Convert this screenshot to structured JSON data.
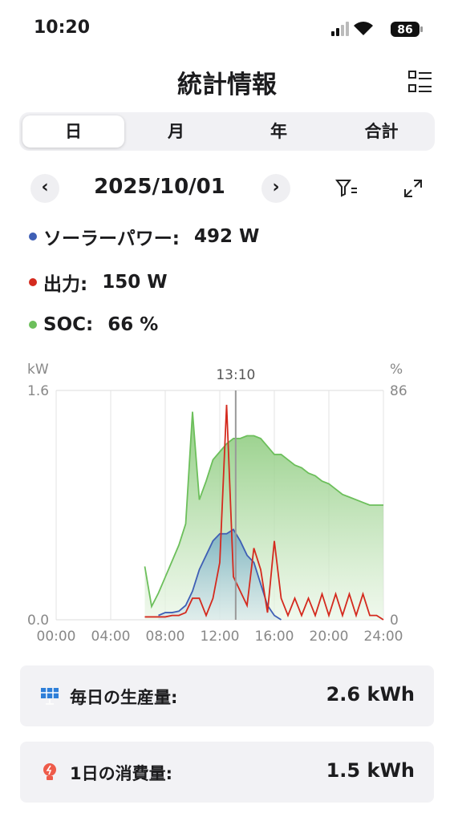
{
  "status_bar": {
    "time": "10:20",
    "battery": "86"
  },
  "header": {
    "title": "統計情報"
  },
  "tabs": {
    "items": [
      "日",
      "月",
      "年",
      "合計"
    ],
    "selected": 0
  },
  "date_nav": {
    "date": "2025/10/01"
  },
  "chart_data": {
    "type": "line",
    "y_label": "kW",
    "y2_label": "%",
    "x": [
      6.5,
      7,
      7.5,
      8,
      8.5,
      9,
      9.5,
      10,
      10.5,
      11,
      11.5,
      12,
      12.5,
      13,
      13.5,
      14,
      14.5,
      15,
      15.5,
      16,
      16.5,
      17,
      17.5,
      18,
      18.5,
      19,
      19.5,
      20,
      20.5,
      21,
      21.5,
      22,
      22.5,
      23,
      23.5,
      24
    ],
    "xlim": [
      0,
      24
    ],
    "xticks": [
      {
        "value": 0,
        "label": "00:00"
      },
      {
        "value": 4,
        "label": "04:00"
      },
      {
        "value": 8,
        "label": "08:00"
      },
      {
        "value": 12,
        "label": "12:00"
      },
      {
        "value": 16,
        "label": "16:00"
      },
      {
        "value": 20,
        "label": "20:00"
      },
      {
        "value": 24,
        "label": "24:00"
      }
    ],
    "ylim": [
      0,
      1.6
    ],
    "yticks": [
      {
        "value": 0,
        "label": "0.0"
      },
      1.6
    ],
    "y2lim": [
      0,
      86
    ],
    "y2ticks": [
      0,
      86
    ],
    "grid": true,
    "cursor": {
      "x": 13.1667,
      "label": "13:10"
    },
    "series": [
      {
        "name": "ソーラーパワー:",
        "color": "#3f5fb5",
        "readout": "492 W",
        "fill": true,
        "values": [
          null,
          null,
          0.03,
          0.05,
          0.05,
          0.06,
          0.1,
          0.2,
          0.35,
          0.45,
          0.55,
          0.6,
          0.6,
          0.63,
          0.55,
          0.45,
          0.4,
          0.25,
          0.1,
          0.03,
          0,
          null,
          null,
          null,
          null,
          null,
          null,
          null,
          null,
          null,
          null,
          null,
          null,
          null,
          null,
          null
        ]
      },
      {
        "name": "出力:",
        "color": "#d42a1e",
        "readout": "150 W",
        "fill": false,
        "values": [
          0.02,
          0.02,
          0.02,
          0.02,
          0.03,
          0.03,
          0.05,
          0.15,
          0.15,
          0.03,
          0.15,
          0.4,
          1.5,
          0.3,
          0.2,
          0.1,
          0.5,
          0.35,
          0.05,
          0.55,
          0.15,
          0.03,
          0.15,
          0.03,
          0.15,
          0.03,
          0.18,
          0.03,
          0.18,
          0.03,
          0.18,
          0.03,
          0.18,
          0.03,
          0.03,
          0
        ]
      },
      {
        "name": "SOC:",
        "color": "#6cbf5b",
        "readout": "66 %",
        "fill": true,
        "axis": "y2",
        "values": [
          20,
          5,
          10,
          16,
          22,
          28,
          36,
          78,
          45,
          52,
          60,
          63,
          66,
          68,
          68,
          69,
          69,
          68,
          65,
          62,
          62,
          60,
          58,
          57,
          55,
          54,
          52,
          51,
          49,
          47,
          46,
          45,
          44,
          43,
          43,
          43
        ]
      }
    ]
  },
  "summary": [
    {
      "label": "毎日の生産量:",
      "value": "2.6 kWh"
    },
    {
      "label": "1日の消費量:",
      "value": "1.5 kWh"
    }
  ]
}
